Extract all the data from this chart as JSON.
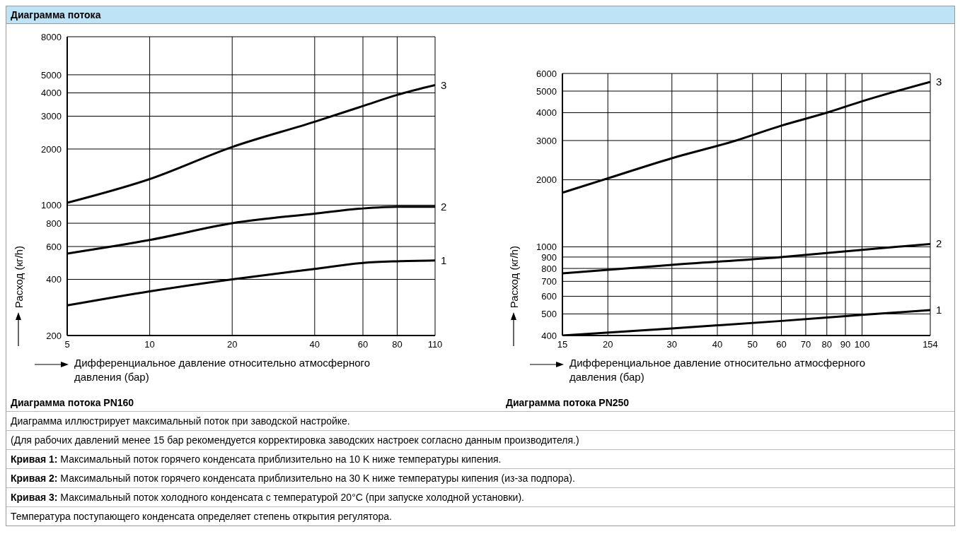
{
  "chart_data": [
    {
      "type": "line",
      "title": "Диаграмма потока PN160",
      "xlabel": "Дифференциальное давление относительно атмосферного давления (бар)",
      "ylabel": "Расход (кг/h)",
      "log": "xy",
      "grid": true,
      "marker": "none",
      "line_style": "solid",
      "annotations": [
        "Диаграмма потока"
      ],
      "xlim": [
        5,
        110
      ],
      "xticks": [
        5,
        10,
        20,
        40,
        60,
        80,
        110
      ],
      "ylim": [
        200,
        8000
      ],
      "yticks": [
        200,
        400,
        600,
        800,
        1000,
        2000,
        3000,
        4000,
        5000,
        8000
      ],
      "series": [
        {
          "name": "1",
          "color": "#000000",
          "x": [
            5,
            10,
            20,
            40,
            60,
            80,
            110
          ],
          "values": [
            290,
            345,
            400,
            455,
            490,
            500,
            505
          ]
        },
        {
          "name": "2",
          "color": "#000000",
          "x": [
            5,
            10,
            20,
            40,
            60,
            80,
            110
          ],
          "values": [
            550,
            650,
            800,
            900,
            960,
            980,
            980
          ]
        },
        {
          "name": "3",
          "color": "#000000",
          "x": [
            5,
            10,
            20,
            40,
            60,
            80,
            110
          ],
          "values": [
            1030,
            1380,
            2050,
            2800,
            3400,
            3900,
            4400
          ]
        }
      ]
    },
    {
      "type": "line",
      "title": "Диаграмма потока PN250",
      "xlabel": "Дифференциальное давление относительно атмосферного давления (бар)",
      "ylabel": "Расход (кг/h)",
      "log": "xy",
      "grid": true,
      "marker": "none",
      "line_style": "solid",
      "annotations": [
        "Диаграмма иллюстрирует максимальный поток при заводской настройке.",
        "(Для рабочих давлений менее 15 бар рекомендуется корректировка заводских настроек согласно данным производителя.)",
        "Кривая 1: Максимальный поток горячего конденсата приблизительно на 10 K ниже температуры кипения.",
        "Кривая 2: Максимальный поток горячего конденсата приблизительно на 30 K ниже температуры кипения (из-за подпора).",
        "Кривая 3: Максимальный поток холодного конденсата с температурой 20°C (при запуске холодной установки).",
        "Температура поступающего конденсата определяет степень открытия регулятора."
      ],
      "xlim": [
        15,
        154
      ],
      "xticks": [
        15,
        20,
        30,
        40,
        50,
        60,
        70,
        80,
        90,
        100,
        154
      ],
      "ylim": [
        400,
        6000
      ],
      "yticks": [
        400,
        500,
        600,
        700,
        800,
        900,
        1000,
        2000,
        3000,
        4000,
        5000,
        6000
      ],
      "series": [
        {
          "name": "1",
          "color": "#000000",
          "x": [
            15,
            30,
            60,
            100,
            154
          ],
          "values": [
            400,
            430,
            465,
            495,
            520
          ]
        },
        {
          "name": "2",
          "color": "#000000",
          "x": [
            15,
            30,
            60,
            100,
            154
          ],
          "values": [
            760,
            830,
            900,
            970,
            1030
          ]
        },
        {
          "name": "3",
          "color": "#000000",
          "x": [
            15,
            20,
            30,
            45,
            60,
            80,
            100,
            154
          ],
          "values": [
            1750,
            2030,
            2500,
            3000,
            3500,
            4000,
            4500,
            5500
          ]
        }
      ]
    }
  ]
}
